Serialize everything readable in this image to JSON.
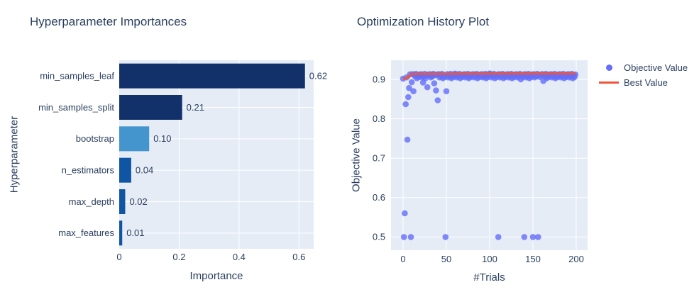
{
  "page": {
    "background": "#ffffff",
    "text_color": "#2a3f5f",
    "plot_bg": "#e5ecf6",
    "grid_color": "#ffffff"
  },
  "chart_data": [
    {
      "type": "bar",
      "orientation": "horizontal",
      "title": "Hyperparameter Importances",
      "xlabel": "Importance",
      "ylabel": "Hyperparameter",
      "categories": [
        "min_samples_leaf",
        "min_samples_split",
        "bootstrap",
        "n_estimators",
        "max_depth",
        "max_features"
      ],
      "values": [
        0.62,
        0.21,
        0.1,
        0.04,
        0.02,
        0.01
      ],
      "bar_labels": [
        "0.62",
        "0.21",
        "0.10",
        "0.04",
        "0.02",
        "0.01"
      ],
      "bar_colors": [
        "#12316b",
        "#12316b",
        "#4494ce",
        "#0f55a3",
        "#0f55a3",
        "#0f55a3"
      ],
      "xlim": [
        0,
        0.649
      ],
      "xticks": [
        0,
        0.2,
        0.4,
        0.6
      ],
      "xtick_labels": [
        "0",
        "0.2",
        "0.4",
        "0.6"
      ],
      "grid": true
    },
    {
      "type": "scatter",
      "title": "Optimization History Plot",
      "xlabel": "#Trials",
      "ylabel": "Objective Value",
      "xlim": [
        -14,
        213
      ],
      "ylim": [
        0.4666,
        0.9486
      ],
      "xticks": [
        0,
        50,
        100,
        150,
        200
      ],
      "xtick_labels": [
        "0",
        "50",
        "100",
        "150",
        "200"
      ],
      "yticks": [
        0.5,
        0.6,
        0.7,
        0.8,
        0.9
      ],
      "ytick_labels": [
        "0.5",
        "0.6",
        "0.7",
        "0.8",
        "0.9"
      ],
      "marker_color": "#636efa",
      "best_color": "#ef553b",
      "legend": [
        {
          "label": "Objective Value",
          "marker": "dot",
          "color": "#636efa"
        },
        {
          "label": "Best Value",
          "marker": "line",
          "color": "#ef553b"
        }
      ],
      "best_value_rule": "running-max",
      "objective_values": [
        0.902,
        0.5,
        0.56,
        0.837,
        0.905,
        0.747,
        0.855,
        0.878,
        0.913,
        0.5,
        0.893,
        0.9135,
        0.87,
        0.912,
        0.9075,
        0.914,
        0.903,
        0.911,
        0.906,
        0.9125,
        0.91,
        0.9135,
        0.905,
        0.892,
        0.9075,
        0.914,
        0.903,
        0.911,
        0.88,
        0.9125,
        0.91,
        0.9135,
        0.905,
        0.912,
        0.9075,
        0.914,
        0.89,
        0.911,
        0.872,
        0.9125,
        0.847,
        0.9135,
        0.905,
        0.912,
        0.9075,
        0.914,
        0.903,
        0.911,
        0.906,
        0.5,
        0.87,
        0.9135,
        0.905,
        0.912,
        0.9075,
        0.914,
        0.903,
        0.911,
        0.906,
        0.9125,
        0.9145,
        0.9135,
        0.905,
        0.912,
        0.9075,
        0.914,
        0.903,
        0.911,
        0.906,
        0.9125,
        0.91,
        0.9135,
        0.905,
        0.912,
        0.9075,
        0.914,
        0.903,
        0.911,
        0.906,
        0.9125,
        0.91,
        0.9135,
        0.905,
        0.912,
        0.9075,
        0.914,
        0.903,
        0.911,
        0.906,
        0.9125,
        0.91,
        0.9135,
        0.905,
        0.912,
        0.9075,
        0.914,
        0.903,
        0.911,
        0.906,
        0.9125,
        0.915,
        0.9135,
        0.905,
        0.912,
        0.9075,
        0.914,
        0.903,
        0.911,
        0.906,
        0.9125,
        0.5,
        0.9135,
        0.905,
        0.912,
        0.9075,
        0.914,
        0.903,
        0.911,
        0.906,
        0.9125,
        0.91,
        0.9135,
        0.905,
        0.912,
        0.9075,
        0.914,
        0.903,
        0.911,
        0.906,
        0.9125,
        0.91,
        0.9135,
        0.905,
        0.912,
        0.9075,
        0.914,
        0.9,
        0.911,
        0.906,
        0.9125,
        0.5,
        0.9135,
        0.905,
        0.912,
        0.9075,
        0.914,
        0.903,
        0.911,
        0.906,
        0.9125,
        0.5,
        0.9135,
        0.905,
        0.912,
        0.9075,
        0.914,
        0.5,
        0.911,
        0.906,
        0.9125,
        0.91,
        0.9135,
        0.896,
        0.912,
        0.9075,
        0.914,
        0.903,
        0.911,
        0.906,
        0.9125,
        0.91,
        0.9135,
        0.905,
        0.912,
        0.9075,
        0.914,
        0.903,
        0.911,
        0.906,
        0.9125,
        0.91,
        0.9135,
        0.905,
        0.912,
        0.9075,
        0.914,
        0.903,
        0.911,
        0.906,
        0.9125,
        0.91,
        0.9135,
        0.905,
        0.912,
        0.9075,
        0.914,
        0.903,
        0.911,
        0.906,
        0.9125
      ]
    }
  ]
}
